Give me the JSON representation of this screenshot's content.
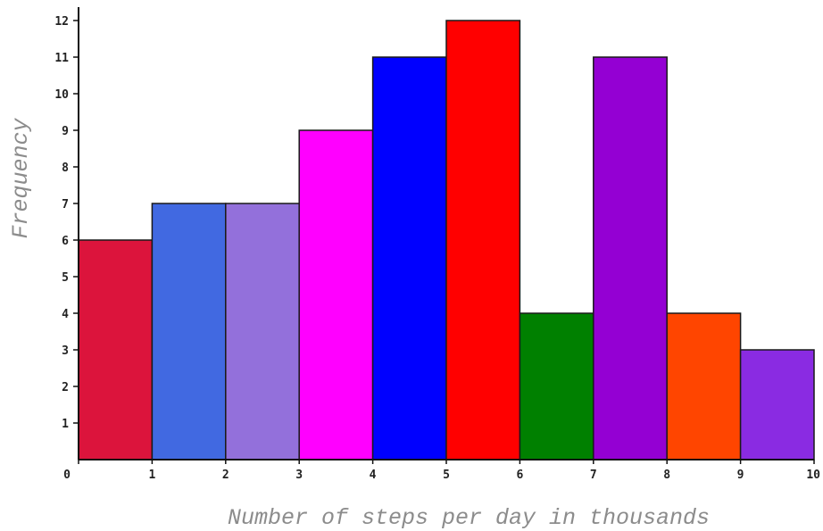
{
  "chart_data": {
    "type": "bar",
    "title": "",
    "xlabel": "Number of steps per day in thousands",
    "ylabel": "Frequency",
    "x_ticks": [
      "0",
      "1",
      "2",
      "3",
      "4",
      "5",
      "6",
      "7",
      "8",
      "9",
      "10"
    ],
    "y_ticks": [
      "1",
      "2",
      "3",
      "4",
      "5",
      "6",
      "7",
      "8",
      "9",
      "10",
      "11",
      "12"
    ],
    "xlim": [
      0,
      10
    ],
    "ylim": [
      0,
      12
    ],
    "bins": [
      [
        0,
        1
      ],
      [
        1,
        2
      ],
      [
        2,
        3
      ],
      [
        3,
        4
      ],
      [
        4,
        5
      ],
      [
        5,
        6
      ],
      [
        6,
        7
      ],
      [
        7,
        8
      ],
      [
        8,
        9
      ],
      [
        9,
        10
      ]
    ],
    "values": [
      6,
      7,
      7,
      9,
      11,
      12,
      4,
      11,
      4,
      3
    ],
    "colors": [
      "#dc143c",
      "#4169e1",
      "#9370db",
      "#ff00ff",
      "#0000ff",
      "#ff0000",
      "#008000",
      "#9400d3",
      "#ff4500",
      "#8a2be2"
    ],
    "grid": false,
    "legend": "none"
  }
}
